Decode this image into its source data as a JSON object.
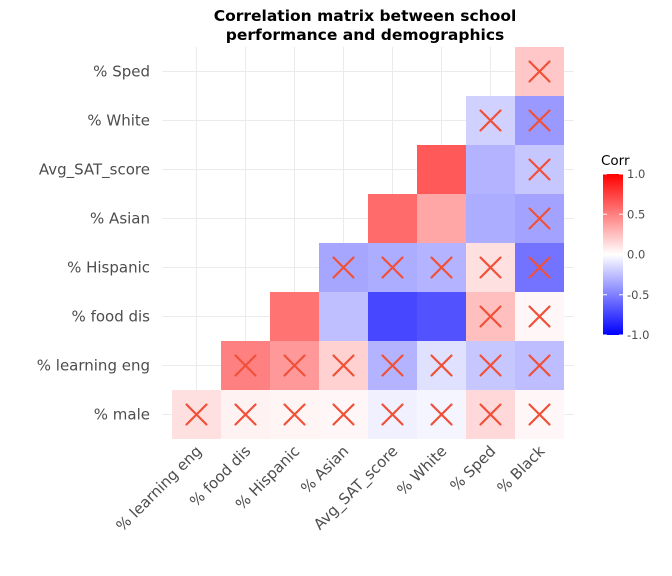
{
  "chart_data": {
    "type": "heatmap",
    "title": [
      "Correlation matrix between school",
      "performance and demographics"
    ],
    "variables": [
      "% male",
      "% learning eng",
      "% food dis",
      "% Hispanic",
      "% Asian",
      "Avg_SAT_score",
      "% White",
      "% Sped",
      "% Black"
    ],
    "x_labels": [
      "% learning eng",
      "% food dis",
      "% Hispanic",
      "% Asian",
      "Avg_SAT_score",
      "% White",
      "% Sped",
      "% Black"
    ],
    "y_labels": [
      "% male",
      "% learning eng",
      "% food dis",
      "% Hispanic",
      "% Asian",
      "Avg_SAT_score",
      "% White",
      "% Sped"
    ],
    "cells": [
      {
        "x": "% learning eng",
        "y": "% male",
        "value": 0.12,
        "insignificant": true
      },
      {
        "x": "% food dis",
        "y": "% male",
        "value": 0.05,
        "insignificant": true
      },
      {
        "x": "% Hispanic",
        "y": "% male",
        "value": 0.04,
        "insignificant": true
      },
      {
        "x": "% Asian",
        "y": "% male",
        "value": 0.03,
        "insignificant": true
      },
      {
        "x": "Avg_SAT_score",
        "y": "% male",
        "value": -0.06,
        "insignificant": true
      },
      {
        "x": "% White",
        "y": "% male",
        "value": -0.04,
        "insignificant": true
      },
      {
        "x": "% Sped",
        "y": "% male",
        "value": 0.15,
        "insignificant": true
      },
      {
        "x": "% Black",
        "y": "% male",
        "value": 0.03,
        "insignificant": true
      },
      {
        "x": "% food dis",
        "y": "% learning eng",
        "value": 0.5,
        "insignificant": true
      },
      {
        "x": "% Hispanic",
        "y": "% learning eng",
        "value": 0.4,
        "insignificant": true
      },
      {
        "x": "% Asian",
        "y": "% learning eng",
        "value": 0.18,
        "insignificant": true
      },
      {
        "x": "Avg_SAT_score",
        "y": "% learning eng",
        "value": -0.3,
        "insignificant": true
      },
      {
        "x": "% White",
        "y": "% learning eng",
        "value": -0.12,
        "insignificant": true
      },
      {
        "x": "% Sped",
        "y": "% learning eng",
        "value": -0.22,
        "insignificant": true
      },
      {
        "x": "% Black",
        "y": "% learning eng",
        "value": -0.26,
        "insignificant": true
      },
      {
        "x": "% Hispanic",
        "y": "% food dis",
        "value": 0.55,
        "insignificant": false
      },
      {
        "x": "% Asian",
        "y": "% food dis",
        "value": -0.25,
        "insignificant": false
      },
      {
        "x": "Avg_SAT_score",
        "y": "% food dis",
        "value": -0.72,
        "insignificant": false
      },
      {
        "x": "% White",
        "y": "% food dis",
        "value": -0.68,
        "insignificant": false
      },
      {
        "x": "% Sped",
        "y": "% food dis",
        "value": 0.25,
        "insignificant": true
      },
      {
        "x": "% Black",
        "y": "% food dis",
        "value": 0.03,
        "insignificant": true
      },
      {
        "x": "% Asian",
        "y": "% Hispanic",
        "value": -0.35,
        "insignificant": true
      },
      {
        "x": "Avg_SAT_score",
        "y": "% Hispanic",
        "value": -0.32,
        "insignificant": true
      },
      {
        "x": "% White",
        "y": "% Hispanic",
        "value": -0.3,
        "insignificant": true
      },
      {
        "x": "% Sped",
        "y": "% Hispanic",
        "value": 0.12,
        "insignificant": true
      },
      {
        "x": "% Black",
        "y": "% Hispanic",
        "value": -0.55,
        "insignificant": true
      },
      {
        "x": "Avg_SAT_score",
        "y": "% Asian",
        "value": 0.58,
        "insignificant": false
      },
      {
        "x": "% White",
        "y": "% Asian",
        "value": 0.35,
        "insignificant": false
      },
      {
        "x": "% Sped",
        "y": "% Asian",
        "value": -0.32,
        "insignificant": false
      },
      {
        "x": "% Black",
        "y": "% Asian",
        "value": -0.36,
        "insignificant": true
      },
      {
        "x": "% White",
        "y": "Avg_SAT_score",
        "value": 0.65,
        "insignificant": false
      },
      {
        "x": "% Sped",
        "y": "Avg_SAT_score",
        "value": -0.3,
        "insignificant": false
      },
      {
        "x": "% Black",
        "y": "Avg_SAT_score",
        "value": -0.22,
        "insignificant": true
      },
      {
        "x": "% Sped",
        "y": "% White",
        "value": -0.18,
        "insignificant": true
      },
      {
        "x": "% Black",
        "y": "% White",
        "value": -0.4,
        "insignificant": true
      },
      {
        "x": "% Black",
        "y": "% Sped",
        "value": 0.22,
        "insignificant": true
      }
    ],
    "legend": {
      "title": "Corr",
      "ticks": [
        "1.0",
        "0.5",
        "0.0",
        "-0.5",
        "-1.0"
      ],
      "tick_values": [
        1.0,
        0.5,
        0.0,
        -0.5,
        -1.0
      ],
      "range": [
        -1,
        1
      ],
      "position": "right"
    },
    "colors": {
      "low": "#0000ff",
      "mid": "#ffffff",
      "high": "#ff0000",
      "cross": "#f05038"
    },
    "grid": true
  }
}
